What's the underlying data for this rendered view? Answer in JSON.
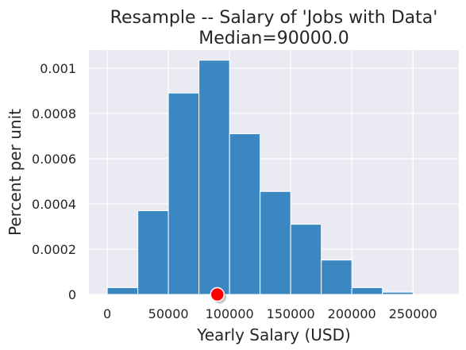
{
  "chart_data": {
    "type": "bar",
    "title_line1": "Resample -- Salary of 'Jobs with Data'",
    "title_line2": "Median=90000.0",
    "xlabel": "Yearly Salary (USD)",
    "ylabel": "Percent per unit",
    "xlim": [
      -15000,
      287500
    ],
    "ylim": [
      0,
      0.00108
    ],
    "x_ticks": [
      0,
      50000,
      100000,
      150000,
      200000,
      250000
    ],
    "x_tick_labels": [
      "0",
      "50000",
      "100000",
      "150000",
      "200000",
      "250000"
    ],
    "y_ticks": [
      0,
      0.0002,
      0.0004,
      0.0006,
      0.0008,
      0.001
    ],
    "y_tick_labels": [
      "0",
      "0.0002",
      "0.0004",
      "0.0006",
      "0.0008",
      "0.001"
    ],
    "bin_width": 25000,
    "bins": [
      {
        "start": 0,
        "value": 3e-05
      },
      {
        "start": 25000,
        "value": 0.00037
      },
      {
        "start": 50000,
        "value": 0.00089
      },
      {
        "start": 75000,
        "value": 0.001035
      },
      {
        "start": 100000,
        "value": 0.00071
      },
      {
        "start": 125000,
        "value": 0.000455
      },
      {
        "start": 150000,
        "value": 0.00031
      },
      {
        "start": 175000,
        "value": 0.000152
      },
      {
        "start": 200000,
        "value": 3e-05
      },
      {
        "start": 225000,
        "value": 1e-05
      }
    ],
    "median_marker": {
      "x": 90000,
      "y": 0
    },
    "colors": {
      "bar": "#3a87c1",
      "bar_edge": "#ffffff",
      "background": "#eaeaf2",
      "grid": "#ffffff",
      "marker": "#ff0000",
      "marker_edge": "#ffffff"
    },
    "grid": true
  }
}
